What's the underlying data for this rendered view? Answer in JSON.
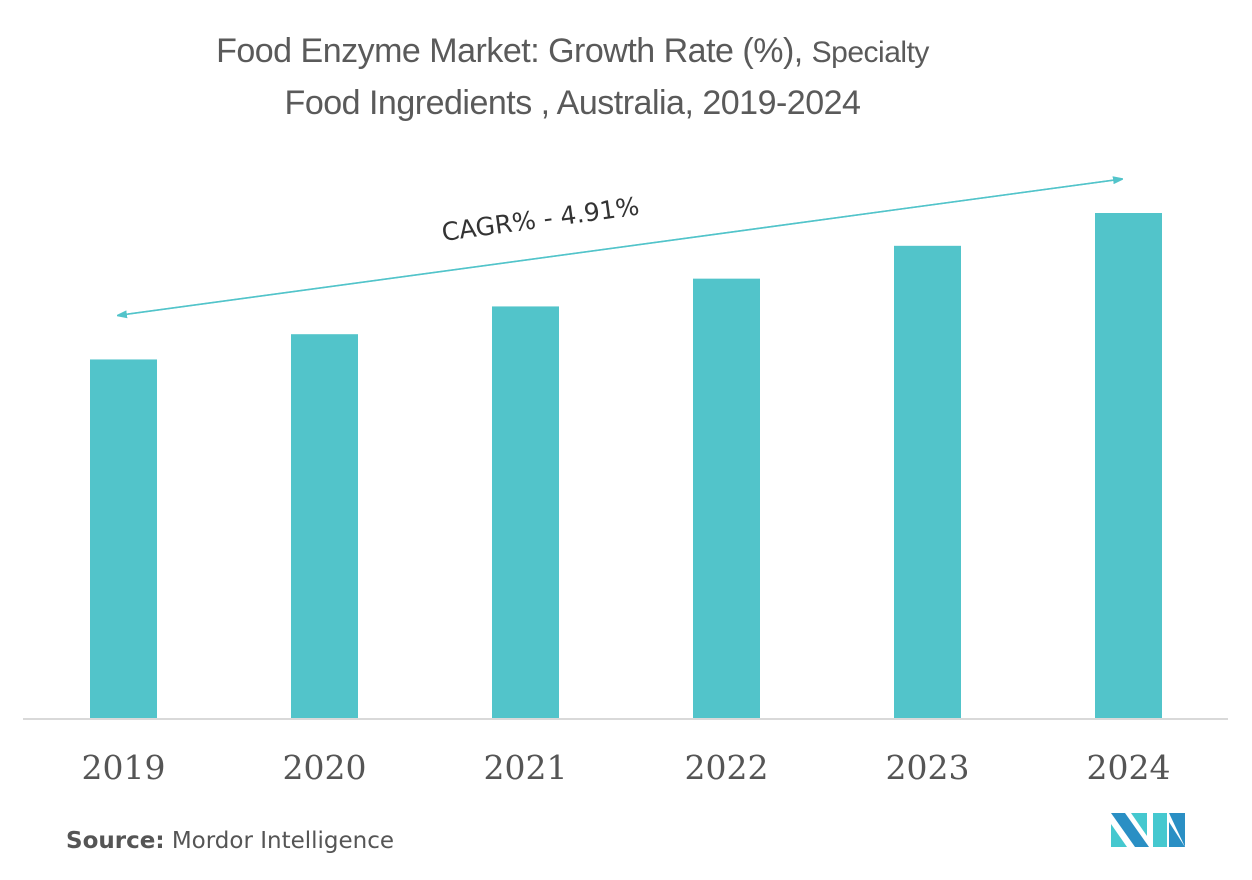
{
  "title_line1": "Food Enzyme Market: Growth Rate (%),",
  "title_line1_small": "Specialty",
  "title_line2": "Food Ingredients , Australia, 2019-2024",
  "source_label": "Source:",
  "source_value": "Mordor Intelligence",
  "logo": "mordor-intelligence-logo",
  "colors": {
    "bar": "#52c4ca",
    "axis": "#d9d9d9",
    "arrow": "#52c4ca",
    "logo_dark": "#2a8fc4",
    "logo_light": "#45c8cf"
  },
  "chart_data": {
    "type": "bar",
    "title": "Food Enzyme Market: Growth Rate (%), Specialty Food Ingredients , Australia, 2019-2024",
    "categories": [
      "2019",
      "2020",
      "2021",
      "2022",
      "2023",
      "2024"
    ],
    "values": [
      71,
      76,
      81.5,
      87,
      93.5,
      100
    ],
    "value_note": "relative values (no y-axis shown); 2024 indexed to 100",
    "xlabel": "",
    "ylabel": "",
    "ylim": [
      0,
      100
    ],
    "grid": false,
    "annotation": "CAGR% - 4.91%"
  }
}
